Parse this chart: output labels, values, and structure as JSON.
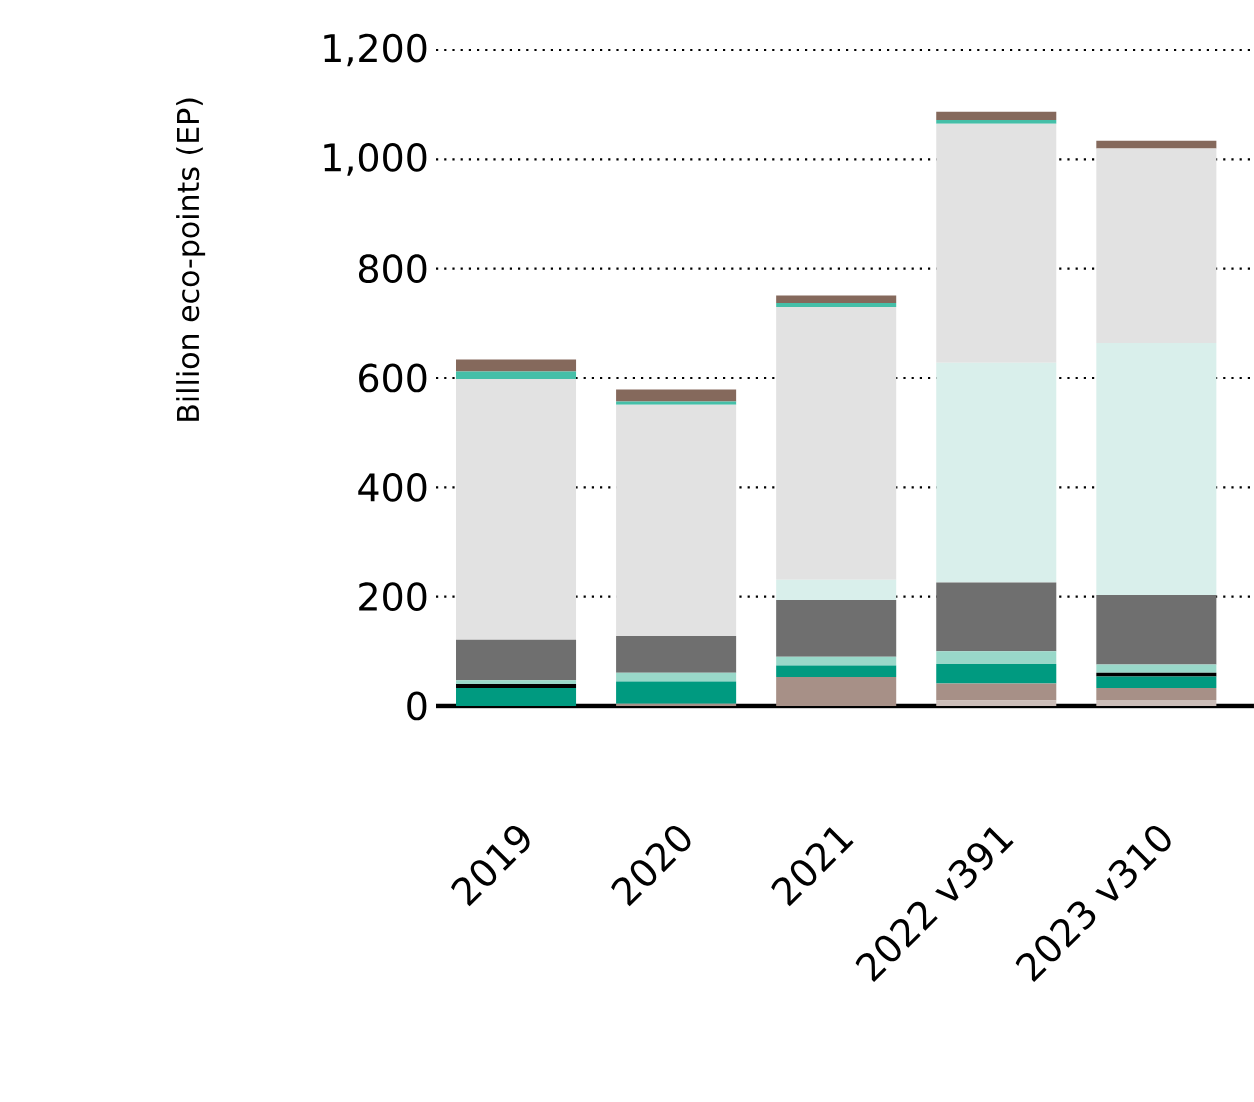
{
  "chart_data": {
    "type": "bar",
    "stacked": true,
    "ylabel": "Billion eco-points (EP)",
    "categories": [
      "2019",
      "2020",
      "2021",
      "2022 v391",
      "2023 v310"
    ],
    "ylim": [
      0,
      1200
    ],
    "yticks": [
      0,
      200,
      400,
      600,
      800,
      {
        "value": 1000,
        "label": "1,000"
      },
      {
        "value": 1200,
        "label": "1,200"
      }
    ],
    "grid": "y",
    "series": [
      {
        "color": "#cbbdb8",
        "values": [
          0,
          0,
          0,
          10,
          11
        ]
      },
      {
        "color": "#a79087",
        "values": [
          0,
          4,
          53,
          31,
          22
        ]
      },
      {
        "color": "#009a80",
        "values": [
          33,
          41,
          21,
          36,
          21
        ]
      },
      {
        "color": "#000000",
        "values": [
          7,
          0,
          0,
          0,
          7
        ]
      },
      {
        "color": "#99d8c9",
        "values": [
          7,
          16,
          16,
          23,
          15
        ]
      },
      {
        "color": "#6f6f6f",
        "values": [
          74,
          67,
          104,
          126,
          127
        ]
      },
      {
        "color": "#d9efeb",
        "values": [
          0,
          0,
          37,
          402,
          461
        ]
      },
      {
        "color": "#e2e2e2",
        "values": [
          477,
          423,
          499,
          437,
          356
        ]
      },
      {
        "color": "#45bfa8",
        "values": [
          14,
          6,
          7,
          7,
          0
        ]
      },
      {
        "color": "#85695c",
        "values": [
          22,
          22,
          14,
          15,
          14
        ]
      }
    ]
  }
}
